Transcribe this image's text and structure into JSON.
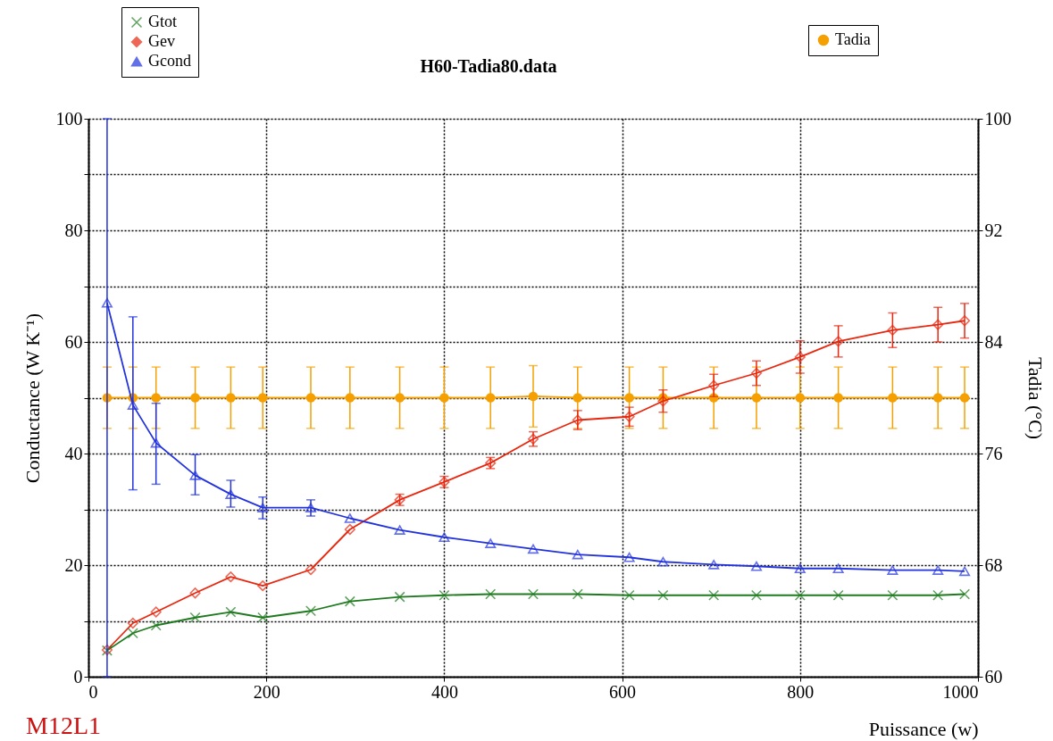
{
  "chart_data": {
    "type": "line",
    "title": "H60-Tadia80.data",
    "xlabel": "Puissance (w)",
    "ylabel": "Conductance (W K⁻¹)",
    "y2label": "Tadia (°C)",
    "x": [
      21,
      50,
      76,
      120,
      160,
      196,
      250,
      294,
      350,
      400,
      452,
      500,
      550,
      608,
      646,
      703,
      751,
      800,
      843,
      904,
      955,
      985
    ],
    "xlim": [
      0,
      1000
    ],
    "xticks": [
      0,
      200,
      400,
      600,
      800,
      1000
    ],
    "ylim": [
      0,
      100
    ],
    "yticks": [
      0,
      {
        "value": 10,
        "label": null
      },
      20,
      {
        "value": 30,
        "label": null
      },
      40,
      {
        "value": 50,
        "label": null
      },
      60,
      {
        "value": 70,
        "label": null
      },
      80,
      {
        "value": 90,
        "label": null
      },
      100
    ],
    "y2lim": [
      60,
      100
    ],
    "y2ticks": [
      60,
      68,
      76,
      84,
      92,
      100
    ],
    "grid": true,
    "legend": "top",
    "line_style": "solid",
    "series": [
      {
        "name": "Gtot",
        "color": "#1e7a1e",
        "marker": "cross",
        "values": [
          4.7,
          7.8,
          9.2,
          10.6,
          11.6,
          10.6,
          11.8,
          13.5,
          14.3,
          14.6,
          14.8,
          14.8,
          14.8,
          14.6,
          14.6,
          14.6,
          14.6,
          14.6,
          14.6,
          14.6,
          14.6,
          14.8
        ]
      },
      {
        "name": "Gev",
        "color": "#e8270f",
        "marker": "diamond",
        "values": [
          4.8,
          9.6,
          11.6,
          15.0,
          17.9,
          16.3,
          19.2,
          26.4,
          31.7,
          34.9,
          38.3,
          42.6,
          46.0,
          46.6,
          49.4,
          52.2,
          54.4,
          57.3,
          60.1,
          62.1,
          63.1,
          63.8
        ],
        "errors": [
          null,
          null,
          null,
          null,
          null,
          null,
          null,
          null,
          1.0,
          1.0,
          1.0,
          1.3,
          1.7,
          1.7,
          2.0,
          2.0,
          2.2,
          2.9,
          2.8,
          3.1,
          3.1,
          3.1
        ]
      },
      {
        "name": "Gcond",
        "color": "#2233dd",
        "marker": "triangle",
        "values": [
          67.0,
          48.7,
          41.9,
          36.1,
          32.7,
          30.3,
          30.3,
          28.4,
          26.3,
          25.0,
          23.9,
          22.9,
          21.9,
          21.4,
          20.6,
          20.1,
          19.8,
          19.4,
          19.4,
          19.1,
          19.1,
          18.9
        ],
        "errors": [
          [
            0,
            100
          ],
          [
            33.5,
            64.5
          ],
          [
            34.5,
            49
          ],
          [
            32.6,
            39.8
          ],
          [
            30.4,
            35.2
          ],
          [
            28.3,
            32.2
          ],
          [
            28.8,
            31.7
          ],
          null,
          null,
          null,
          null,
          null,
          null,
          null,
          null,
          null,
          null,
          null,
          null,
          null,
          null,
          null
        ]
      },
      {
        "name": "Tadia",
        "color": "#f5a000",
        "marker": "circle",
        "axis": "y2",
        "values": [
          80.0,
          80.0,
          80.0,
          80.0,
          80.0,
          80.0,
          80.0,
          80.0,
          80.0,
          80.0,
          80.0,
          80.1,
          80.0,
          80.0,
          80.0,
          80.0,
          80.0,
          80.0,
          80.0,
          80.0,
          80.0,
          80.0
        ],
        "errors": [
          2.2,
          2.2,
          2.2,
          2.2,
          2.2,
          2.2,
          2.2,
          2.2,
          2.2,
          2.2,
          2.2,
          2.2,
          2.2,
          2.2,
          2.2,
          2.2,
          2.2,
          2.2,
          2.2,
          2.2,
          2.2,
          2.2
        ],
        "xerrors": [
          4,
          4,
          4,
          6,
          6,
          8,
          6,
          6,
          6,
          8,
          6,
          8,
          8,
          8,
          8,
          8,
          8,
          8,
          8,
          8,
          8,
          6
        ]
      }
    ],
    "annotations": [
      "M12L1"
    ]
  }
}
